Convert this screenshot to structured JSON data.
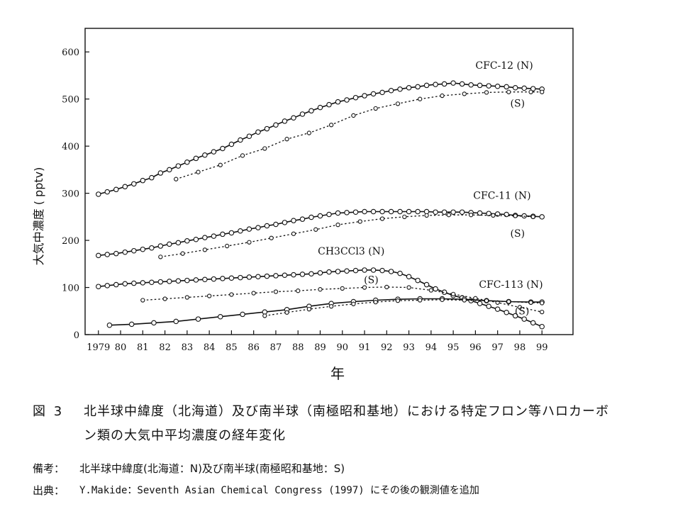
{
  "chart_data": {
    "type": "line",
    "ylabel": "大気中濃度 ( pptv)",
    "xlabel": "年",
    "ylim": [
      0,
      650
    ],
    "yticks": [
      0,
      100,
      200,
      300,
      400,
      500,
      600
    ],
    "xlim": [
      1978.4,
      2000.4
    ],
    "xticks": [
      1979,
      1980,
      1981,
      1982,
      1983,
      1984,
      1985,
      1986,
      1987,
      1988,
      1989,
      1990,
      1991,
      1992,
      1993,
      1994,
      1995,
      1996,
      1997,
      1998,
      1999
    ],
    "xtick_labels": [
      "1979",
      "80",
      "81",
      "82",
      "83",
      "84",
      "85",
      "86",
      "87",
      "88",
      "89",
      "90",
      "91",
      "92",
      "93",
      "94",
      "95",
      "96",
      "97",
      "98",
      "99"
    ],
    "series": [
      {
        "name": "CFC-12 (N)",
        "style": "solid",
        "x": [
          1979.0,
          1979.4,
          1979.8,
          1980.2,
          1980.6,
          1981.0,
          1981.4,
          1981.8,
          1982.2,
          1982.6,
          1983.0,
          1983.4,
          1983.8,
          1984.2,
          1984.6,
          1985.0,
          1985.4,
          1985.8,
          1986.2,
          1986.6,
          1987.0,
          1987.4,
          1987.8,
          1988.2,
          1988.6,
          1989.0,
          1989.4,
          1989.8,
          1990.2,
          1990.6,
          1991.0,
          1991.4,
          1991.8,
          1992.2,
          1992.6,
          1993.0,
          1993.4,
          1993.8,
          1994.2,
          1994.6,
          1995.0,
          1995.4,
          1995.8,
          1996.2,
          1996.6,
          1997.0,
          1997.4,
          1997.8,
          1998.2,
          1998.6,
          1999.0
        ],
        "y": [
          298,
          303,
          308,
          314,
          320,
          327,
          333,
          343,
          350,
          358,
          366,
          374,
          381,
          388,
          395,
          404,
          413,
          421,
          430,
          437,
          445,
          453,
          460,
          468,
          475,
          482,
          488,
          494,
          498,
          503,
          507,
          511,
          514,
          518,
          521,
          524,
          526,
          529,
          531,
          532,
          534,
          532,
          530,
          529,
          528,
          527,
          526,
          524,
          523,
          522,
          521
        ]
      },
      {
        "name": "(S)",
        "style": "dotted",
        "x": [
          1982.5,
          1983.5,
          1984.5,
          1985.5,
          1986.5,
          1987.5,
          1988.5,
          1989.5,
          1990.5,
          1991.5,
          1992.5,
          1993.5,
          1994.5,
          1995.5,
          1996.5,
          1997.5,
          1998.5,
          1999.0
        ],
        "y": [
          330,
          345,
          360,
          380,
          395,
          415,
          428,
          445,
          465,
          480,
          490,
          500,
          507,
          511,
          514,
          515,
          515,
          515
        ]
      },
      {
        "name": "CFC-11 (N)",
        "style": "solid",
        "x": [
          1979.0,
          1979.4,
          1979.8,
          1980.2,
          1980.6,
          1981.0,
          1981.4,
          1981.8,
          1982.2,
          1982.6,
          1983.0,
          1983.4,
          1983.8,
          1984.2,
          1984.6,
          1985.0,
          1985.4,
          1985.8,
          1986.2,
          1986.6,
          1987.0,
          1987.4,
          1987.8,
          1988.2,
          1988.6,
          1989.0,
          1989.4,
          1989.8,
          1990.2,
          1990.6,
          1991.0,
          1991.4,
          1991.8,
          1992.2,
          1992.6,
          1993.0,
          1993.4,
          1993.8,
          1994.2,
          1994.6,
          1995.0,
          1995.4,
          1995.8,
          1996.2,
          1996.6,
          1997.0,
          1997.4,
          1997.8,
          1998.2,
          1998.6,
          1999.0
        ],
        "y": [
          168,
          170,
          172,
          175,
          178,
          181,
          184,
          188,
          192,
          195,
          199,
          202,
          206,
          209,
          213,
          216,
          220,
          224,
          227,
          231,
          234,
          238,
          242,
          245,
          249,
          252,
          255,
          258,
          259,
          260,
          261,
          261,
          261,
          261,
          261,
          261,
          261,
          261,
          260,
          260,
          260,
          260,
          259,
          258,
          257,
          256,
          255,
          253,
          252,
          251,
          250
        ]
      },
      {
        "name": "(S)",
        "style": "dotted",
        "x": [
          1981.8,
          1982.8,
          1983.8,
          1984.8,
          1985.8,
          1986.8,
          1987.8,
          1988.8,
          1989.8,
          1990.8,
          1991.8,
          1992.8,
          1993.8,
          1994.8,
          1995.8,
          1996.8,
          1997.8,
          1998.6
        ],
        "y": [
          165,
          172,
          180,
          188,
          196,
          205,
          214,
          223,
          233,
          240,
          246,
          250,
          253,
          254,
          254,
          253,
          252,
          250
        ]
      },
      {
        "name": "CH3CCl3 (N)",
        "style": "solid",
        "x": [
          1979.0,
          1979.4,
          1979.8,
          1980.2,
          1980.6,
          1981.0,
          1981.4,
          1981.8,
          1982.2,
          1982.6,
          1983.0,
          1983.4,
          1983.8,
          1984.2,
          1984.6,
          1985.0,
          1985.4,
          1985.8,
          1986.2,
          1986.6,
          1987.0,
          1987.4,
          1987.8,
          1988.2,
          1988.6,
          1989.0,
          1989.4,
          1989.8,
          1990.2,
          1990.6,
          1991.0,
          1991.4,
          1991.8,
          1992.2,
          1992.6,
          1993.0,
          1993.4,
          1993.8,
          1994.2,
          1994.6,
          1995.0,
          1995.4,
          1995.8,
          1996.2,
          1996.6,
          1997.0,
          1997.4,
          1997.8,
          1998.2,
          1998.6,
          1999.0
        ],
        "y": [
          102,
          104,
          106,
          108,
          109,
          110,
          111,
          112,
          113,
          114,
          115,
          116,
          117,
          118,
          119,
          120,
          121,
          122,
          123,
          124,
          125,
          126,
          127,
          128,
          129,
          131,
          133,
          134,
          135,
          136,
          137,
          137,
          136,
          134,
          130,
          123,
          115,
          106,
          97,
          90,
          83,
          78,
          72,
          66,
          60,
          54,
          47,
          40,
          33,
          25,
          17
        ]
      },
      {
        "name": "(S)",
        "style": "dotted",
        "x": [
          1981.0,
          1982.0,
          1983.0,
          1984.0,
          1985.0,
          1986.0,
          1987.0,
          1988.0,
          1989.0,
          1990.0,
          1991.0,
          1992.0,
          1993.0,
          1994.0,
          1995.0,
          1996.0,
          1997.0,
          1998.0,
          1999.0
        ],
        "y": [
          73,
          76,
          79,
          82,
          85,
          88,
          91,
          93,
          96,
          98,
          100,
          101,
          100,
          94,
          86,
          77,
          68,
          58,
          48
        ]
      },
      {
        "name": "CFC-113 (N)",
        "style": "solid",
        "x": [
          1979.5,
          1980.5,
          1981.5,
          1982.5,
          1983.5,
          1984.5,
          1985.5,
          1986.5,
          1987.5,
          1988.5,
          1989.5,
          1990.5,
          1991.5,
          1992.5,
          1993.5,
          1994.5,
          1995.5,
          1996.5,
          1997.5,
          1998.5,
          1999.0
        ],
        "y": [
          20,
          22,
          25,
          28,
          33,
          38,
          43,
          48,
          53,
          60,
          66,
          70,
          73,
          75,
          76,
          76,
          75,
          72,
          70,
          69,
          69
        ]
      },
      {
        "name": "(S)",
        "style": "dotted",
        "x": [
          1986.5,
          1987.5,
          1988.5,
          1989.5,
          1990.5,
          1991.5,
          1992.5,
          1993.5,
          1994.5,
          1995.5,
          1996.5,
          1997.5,
          1998.5,
          1999.0
        ],
        "y": [
          40,
          47,
          54,
          60,
          65,
          69,
          72,
          73,
          74,
          73,
          72,
          70,
          68,
          67
        ]
      }
    ],
    "annotations": [
      {
        "text": "CFC-12 (N)",
        "x": 1997.3,
        "y": 564
      },
      {
        "text": "(S)",
        "x": 1997.9,
        "y": 484
      },
      {
        "text": "CFC-11 (N)",
        "x": 1997.2,
        "y": 288
      },
      {
        "text": "(S)",
        "x": 1997.9,
        "y": 208
      },
      {
        "text": "CH3CCl3 (N)",
        "x": 1990.4,
        "y": 170
      },
      {
        "text": "(S)",
        "x": 1991.3,
        "y": 109
      },
      {
        "text": "CFC-113 (N)",
        "x": 1997.6,
        "y": 99
      },
      {
        "text": "(S)",
        "x": 1998.1,
        "y": 43
      }
    ]
  },
  "caption": {
    "label": "図 3",
    "title_line1": "北半球中緯度（北海道）及び南半球（南極昭和基地）における特定フロン等ハロカーボ",
    "title_line2": "ン類の大気中平均濃度の経年変化",
    "notes_label": "備考：",
    "notes_text": "北半球中緯度(北海道：N)及び南半球(南極昭和基地：S)",
    "source_label": "出典：",
    "source_text": "Y.Makide：Seventh Asian Chemical Congress  (1997)  にその後の観測値を追加"
  }
}
